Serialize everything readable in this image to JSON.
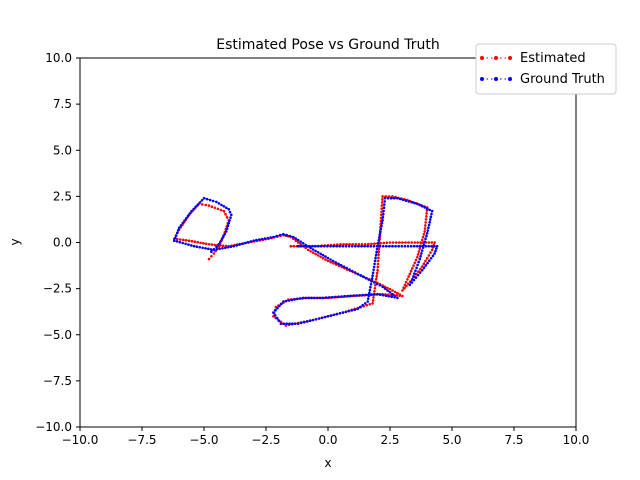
{
  "chart_data": {
    "type": "scatter",
    "title": "Estimated Pose vs Ground Truth",
    "xlabel": "x",
    "ylabel": "y",
    "xlim": [
      -10,
      10
    ],
    "ylim": [
      -10,
      10
    ],
    "xticks": [
      -10,
      -7.5,
      -5,
      -2.5,
      0,
      2.5,
      5,
      7.5,
      10
    ],
    "xtick_labels": [
      "−10.0",
      "−7.5",
      "−5.0",
      "−2.5",
      "0.0",
      "2.5",
      "5.0",
      "7.5",
      "10.0"
    ],
    "yticks": [
      10,
      7.5,
      5,
      2.5,
      0,
      -2.5,
      -5,
      -7.5,
      -10
    ],
    "ytick_labels": [
      "10.0",
      "7.5",
      "5.0",
      "2.5",
      "0.0",
      "−2.5",
      "−5.0",
      "−7.5",
      "−10.0"
    ],
    "grid": false,
    "legend_position": "top-right",
    "series": [
      {
        "name": "Estimated",
        "color": "#ff0000",
        "style": "dotted line with point markers",
        "points": [
          [
            -4.8,
            -0.9
          ],
          [
            -4.6,
            -0.6
          ],
          [
            -4.4,
            -0.2
          ],
          [
            -4.2,
            0.4
          ],
          [
            -4.0,
            1.2
          ],
          [
            -4.2,
            1.7
          ],
          [
            -4.8,
            2.0
          ],
          [
            -5.2,
            2.1
          ],
          [
            -5.6,
            1.5
          ],
          [
            -6.0,
            0.7
          ],
          [
            -6.2,
            0.2
          ],
          [
            -5.6,
            0.1
          ],
          [
            -4.8,
            -0.1
          ],
          [
            -4.0,
            -0.2
          ],
          [
            -3.2,
            0.0
          ],
          [
            -2.4,
            0.2
          ],
          [
            -1.8,
            0.4
          ],
          [
            -1.5,
            0.3
          ],
          [
            -0.8,
            -0.4
          ],
          [
            0.0,
            -1.0
          ],
          [
            1.0,
            -1.6
          ],
          [
            2.0,
            -2.2
          ],
          [
            2.6,
            -2.6
          ],
          [
            3.0,
            -2.9
          ],
          [
            2.2,
            -2.8
          ],
          [
            1.0,
            -2.9
          ],
          [
            0.0,
            -3.0
          ],
          [
            -0.8,
            -3.0
          ],
          [
            -1.6,
            -3.1
          ],
          [
            -2.1,
            -3.5
          ],
          [
            -2.2,
            -4.0
          ],
          [
            -1.7,
            -4.5
          ],
          [
            -0.6,
            -4.2
          ],
          [
            0.6,
            -3.8
          ],
          [
            1.8,
            -3.3
          ],
          [
            2.0,
            -1.5
          ],
          [
            2.1,
            0.5
          ],
          [
            2.2,
            2.5
          ],
          [
            2.6,
            2.5
          ],
          [
            3.2,
            2.3
          ],
          [
            4.0,
            1.9
          ],
          [
            3.9,
            0.6
          ],
          [
            3.6,
            -0.8
          ],
          [
            3.2,
            -2.0
          ],
          [
            3.0,
            -2.6
          ],
          [
            3.4,
            -2.0
          ],
          [
            3.8,
            -1.3
          ],
          [
            4.2,
            -0.4
          ],
          [
            4.3,
            0.0
          ],
          [
            3.5,
            0.0
          ],
          [
            2.5,
            0.0
          ],
          [
            1.5,
            -0.1
          ],
          [
            0.5,
            -0.1
          ],
          [
            -0.5,
            -0.2
          ],
          [
            -1.5,
            -0.2
          ]
        ]
      },
      {
        "name": "Ground Truth",
        "color": "#0000ff",
        "style": "dotted line with point markers",
        "points": [
          [
            -4.7,
            -0.5
          ],
          [
            -4.4,
            -0.1
          ],
          [
            -4.1,
            0.6
          ],
          [
            -3.9,
            1.5
          ],
          [
            -4.0,
            1.8
          ],
          [
            -4.5,
            2.2
          ],
          [
            -5.0,
            2.4
          ],
          [
            -5.5,
            1.7
          ],
          [
            -6.0,
            0.8
          ],
          [
            -6.2,
            0.1
          ],
          [
            -5.4,
            -0.2
          ],
          [
            -4.6,
            -0.4
          ],
          [
            -3.8,
            -0.2
          ],
          [
            -3.0,
            0.1
          ],
          [
            -2.2,
            0.3
          ],
          [
            -1.8,
            0.45
          ],
          [
            -1.4,
            0.3
          ],
          [
            -0.7,
            -0.3
          ],
          [
            0.2,
            -1.0
          ],
          [
            1.2,
            -1.7
          ],
          [
            2.2,
            -2.4
          ],
          [
            2.8,
            -3.0
          ],
          [
            2.0,
            -2.8
          ],
          [
            0.8,
            -2.9
          ],
          [
            -0.2,
            -3.0
          ],
          [
            -1.0,
            -3.0
          ],
          [
            -1.8,
            -3.2
          ],
          [
            -2.2,
            -3.8
          ],
          [
            -1.9,
            -4.4
          ],
          [
            -1.2,
            -4.4
          ],
          [
            0.0,
            -4.0
          ],
          [
            1.2,
            -3.6
          ],
          [
            1.6,
            -3.2
          ],
          [
            1.8,
            -1.8
          ],
          [
            2.0,
            -0.2
          ],
          [
            2.2,
            1.2
          ],
          [
            2.3,
            2.4
          ],
          [
            2.8,
            2.4
          ],
          [
            3.6,
            2.1
          ],
          [
            4.2,
            1.7
          ],
          [
            4.0,
            0.5
          ],
          [
            3.7,
            -0.9
          ],
          [
            3.4,
            -2.0
          ],
          [
            3.3,
            -2.3
          ],
          [
            3.8,
            -1.5
          ],
          [
            4.3,
            -0.6
          ],
          [
            4.4,
            -0.2
          ],
          [
            3.6,
            -0.2
          ],
          [
            2.6,
            -0.2
          ],
          [
            1.6,
            -0.2
          ],
          [
            0.6,
            -0.2
          ],
          [
            -0.4,
            -0.2
          ],
          [
            -1.2,
            -0.2
          ]
        ]
      }
    ]
  }
}
